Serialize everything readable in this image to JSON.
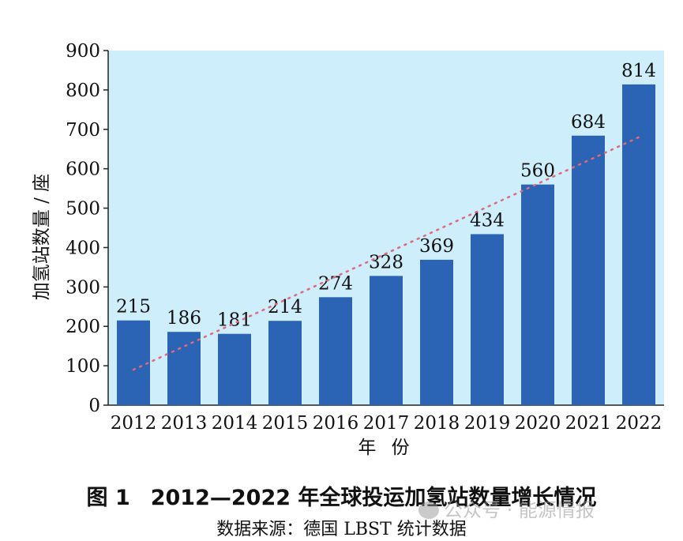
{
  "chart_data": {
    "type": "bar",
    "categories": [
      "2012",
      "2013",
      "2014",
      "2015",
      "2016",
      "2017",
      "2018",
      "2019",
      "2020",
      "2021",
      "2022"
    ],
    "values": [
      215,
      186,
      181,
      214,
      274,
      328,
      369,
      434,
      560,
      684,
      814
    ],
    "data_labels": [
      "215",
      "186",
      "181",
      "214",
      "274",
      "328",
      "369",
      "434",
      "560",
      "684",
      "814"
    ],
    "ylim": [
      0,
      900
    ],
    "yticks": [
      "0",
      "100",
      "200",
      "300",
      "400",
      "500",
      "600",
      "700",
      "800",
      "900"
    ],
    "xlabel": "年 份",
    "ylabel": "加氢站数量 / 座",
    "trendline": {
      "style": "dotted",
      "from": [
        2012,
        90
      ],
      "to": [
        2022,
        680
      ]
    },
    "grid": false,
    "colors": {
      "bar": "#2b63b5",
      "plot_background": "#cdeefa",
      "trendline": "#e06a7a"
    }
  },
  "caption": {
    "figure_number": "图 1",
    "title": "2012—2022 年全球投运加氢站数量增长情况"
  },
  "source": "数据来源：德国 LBST 统计数据",
  "watermark": {
    "text": "公众号 · 能源情报"
  }
}
